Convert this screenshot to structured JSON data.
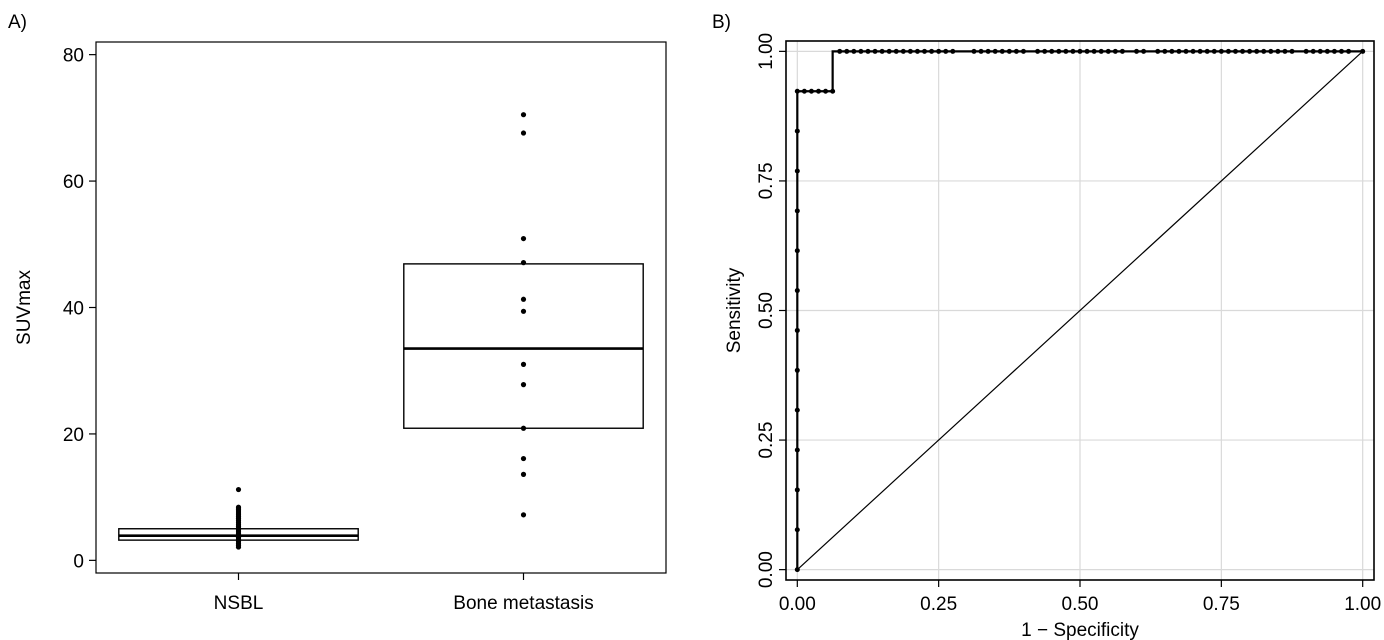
{
  "chart_data": [
    {
      "type": "box",
      "panel_label": "A)",
      "ylabel": "SUVmax",
      "xlabel": "",
      "ylim": [
        -2,
        82
      ],
      "yticks": [
        0,
        20,
        40,
        60,
        80
      ],
      "grid": false,
      "categories": [
        "NSBL",
        "Bone metastasis"
      ],
      "boxes": [
        {
          "name": "NSBL",
          "q1": 3.2,
          "median": 3.9,
          "q3": 5.0
        },
        {
          "name": "Bone metastasis",
          "q1": 20.9,
          "median": 33.5,
          "q3": 46.9
        }
      ],
      "points": [
        {
          "category": "NSBL",
          "values": [
            2.1,
            2.4,
            2.7,
            3.0,
            3.3,
            3.6,
            3.9,
            4.2,
            4.5,
            4.8,
            5.1,
            5.4,
            5.7,
            6.0,
            6.3,
            6.6,
            6.9,
            7.2,
            7.5,
            7.8,
            8.1,
            8.4,
            11.2
          ]
        },
        {
          "category": "Bone metastasis",
          "values": [
            7.2,
            13.6,
            16.1,
            20.9,
            27.8,
            31.0,
            39.4,
            41.3,
            47.1,
            50.9,
            67.6,
            70.5
          ]
        }
      ]
    },
    {
      "type": "line",
      "panel_label": "B)",
      "xlabel": "1 − Specificity",
      "ylabel": "Sensitivity",
      "xlim": [
        -0.02,
        1.02
      ],
      "ylim": [
        -0.02,
        1.02
      ],
      "xticks": [
        "0.00",
        "0.25",
        "0.50",
        "0.75",
        "1.00"
      ],
      "yticks": [
        "0.00",
        "0.25",
        "0.50",
        "0.75",
        "1.00"
      ],
      "grid": true,
      "series": [
        {
          "role": "roc",
          "x": [
            0,
            0,
            0,
            0,
            0,
            0,
            0,
            0,
            0,
            0,
            0,
            0,
            0,
            0.0125,
            0.025,
            0.0375,
            0.05,
            0.0625,
            0.075,
            0.0875,
            0.1,
            0.1125,
            0.125,
            0.1375,
            0.15,
            0.1625,
            0.175,
            0.1875,
            0.2,
            0.2125,
            0.225,
            0.2375,
            0.25,
            0.2625,
            0.275,
            0.3125,
            0.325,
            0.3375,
            0.35,
            0.3625,
            0.375,
            0.3875,
            0.4,
            0.425,
            0.4375,
            0.45,
            0.4625,
            0.475,
            0.4875,
            0.5,
            0.5125,
            0.525,
            0.5375,
            0.55,
            0.5625,
            0.575,
            0.6,
            0.6125,
            0.6375,
            0.65,
            0.6625,
            0.675,
            0.6875,
            0.7,
            0.7125,
            0.725,
            0.7375,
            0.75,
            0.7625,
            0.775,
            0.7875,
            0.8,
            0.8125,
            0.825,
            0.8375,
            0.85,
            0.8625,
            0.875,
            0.9,
            0.9125,
            0.925,
            0.9375,
            0.95,
            0.9625,
            0.975,
            1.0
          ],
          "y": [
            0,
            0.0769,
            0.1538,
            0.2308,
            0.3077,
            0.3846,
            0.4615,
            0.5385,
            0.6154,
            0.6923,
            0.7692,
            0.8462,
            0.9231,
            0.9231,
            0.9231,
            0.9231,
            0.9231,
            0.9231,
            1,
            1,
            1,
            1,
            1,
            1,
            1,
            1,
            1,
            1,
            1,
            1,
            1,
            1,
            1,
            1,
            1,
            1,
            1,
            1,
            1,
            1,
            1,
            1,
            1,
            1,
            1,
            1,
            1,
            1,
            1,
            1,
            1,
            1,
            1,
            1,
            1,
            1,
            1,
            1,
            1,
            1,
            1,
            1,
            1,
            1,
            1,
            1,
            1,
            1,
            1,
            1,
            1,
            1,
            1,
            1,
            1,
            1,
            1,
            1,
            1,
            1,
            1,
            1,
            1,
            1,
            1,
            1
          ]
        },
        {
          "role": "reference",
          "x": [
            0,
            1
          ],
          "y": [
            0,
            1
          ]
        }
      ]
    }
  ]
}
